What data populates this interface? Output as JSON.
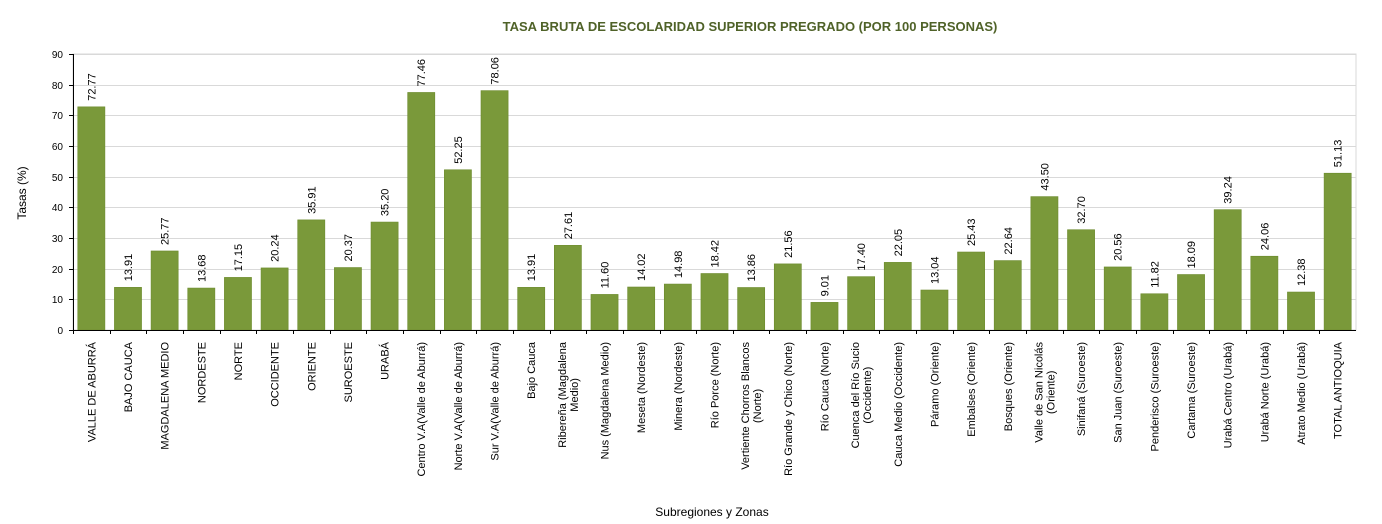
{
  "chart_data": {
    "type": "bar",
    "title": "TASA BRUTA DE ESCOLARIDAD SUPERIOR PREGRADO (POR 100 PERSONAS)",
    "xlabel": "Subregiones y Zonas",
    "ylabel": "Tasas (%)",
    "ylim": [
      0,
      90
    ],
    "yticks": [
      0,
      10,
      20,
      30,
      40,
      50,
      60,
      70,
      80,
      90
    ],
    "grid": true,
    "legend": "none",
    "categories": [
      [
        "VALLE DE ABURRÁ"
      ],
      [
        "BAJO CAUCA"
      ],
      [
        "MAGDALENA MEDIO"
      ],
      [
        "NORDESTE"
      ],
      [
        "NORTE"
      ],
      [
        "OCCIDENTE"
      ],
      [
        "ORIENTE"
      ],
      [
        "SUROESTE"
      ],
      [
        "URABÁ"
      ],
      [
        "Centro V.A(Valle de Aburrá)"
      ],
      [
        "Norte V.A(Valle de Aburrá)"
      ],
      [
        "Sur V.A(Valle de Aburrá)"
      ],
      [
        "Bajo Cauca"
      ],
      [
        "Ribereña  (Magdalena",
        "Medio)"
      ],
      [
        "Nus  (Magdalena Medio)"
      ],
      [
        "Meseta  (Nordeste)"
      ],
      [
        "Minera  (Nordeste)"
      ],
      [
        "Río Porce   (Norte)"
      ],
      [
        "Vertiente Chorros Blancos",
        "(Norte)"
      ],
      [
        "Río Grande y Chico  (Norte)"
      ],
      [
        "Río Cauca  (Norte)"
      ],
      [
        "Cuenca del Río Sucio",
        "(Occidente)"
      ],
      [
        "Cauca Medio  (Occidente)"
      ],
      [
        "Páramo  (Oriente)"
      ],
      [
        "Embalses  (Oriente)"
      ],
      [
        "Bosques  (Oriente)"
      ],
      [
        "Valle de San Nicolás",
        "(Oriente)"
      ],
      [
        "Sinifaná  (Suroeste)"
      ],
      [
        "San Juan  (Suroeste)"
      ],
      [
        "Penderisco  (Suroeste)"
      ],
      [
        "Cartama  (Suroeste)"
      ],
      [
        "Urabá Centro  (Urabá)"
      ],
      [
        "Urabá Norte  (Urabá)"
      ],
      [
        "Atrato Medio  (Urabá)"
      ],
      [
        "TOTAL ANTIOQUIA"
      ]
    ],
    "values": [
      72.77,
      13.91,
      25.77,
      13.68,
      17.15,
      20.24,
      35.91,
      20.37,
      35.2,
      77.46,
      52.25,
      78.06,
      13.91,
      27.61,
      11.6,
      14.02,
      14.98,
      18.42,
      13.86,
      21.56,
      9.01,
      17.4,
      22.05,
      13.04,
      25.43,
      22.64,
      43.5,
      32.7,
      20.56,
      11.82,
      18.09,
      39.24,
      24.06,
      12.38,
      51.13
    ],
    "data_labels": [
      "72.77",
      "13.91",
      "25.77",
      "13.68",
      "17.15",
      "20.24",
      "35.91",
      "20.37",
      "35.20",
      "77.46",
      "52.25",
      "78.06",
      "13.91",
      "27.61",
      "11.60",
      "14.02",
      "14.98",
      "18.42",
      "13.86",
      "21.56",
      "9.01",
      "17.40",
      "22.05",
      "13.04",
      "25.43",
      "22.64",
      "43.50",
      "32.70",
      "20.56",
      "11.82",
      "18.09",
      "39.24",
      "24.06",
      "12.38",
      "51.13"
    ],
    "colors": {
      "bar": "#7a993a",
      "bar_edge": "#6b8a2c",
      "title": "#4f6228",
      "grid": "#d9d9d9",
      "axis": "#000000"
    }
  }
}
